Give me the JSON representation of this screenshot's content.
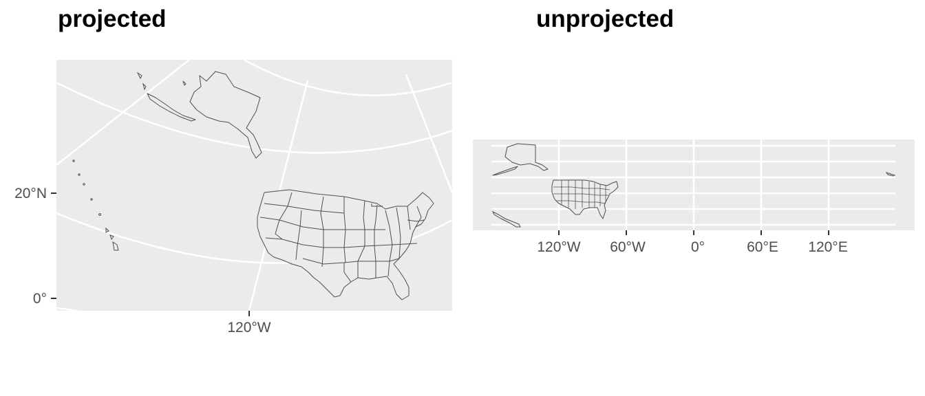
{
  "panels": [
    {
      "title": "projected",
      "y_ticks": [
        "20°N",
        "0°"
      ],
      "x_ticks": [
        "120°W"
      ]
    },
    {
      "title": "unprojected",
      "x_ticks": [
        "120°W",
        "60°W",
        "0°",
        "60°E",
        "120°E"
      ]
    }
  ],
  "colors": {
    "panel_background": "#ebebeb",
    "grid": "#ffffff",
    "border": "#4d4d4d",
    "tick_text": "#4d4d4d"
  }
}
